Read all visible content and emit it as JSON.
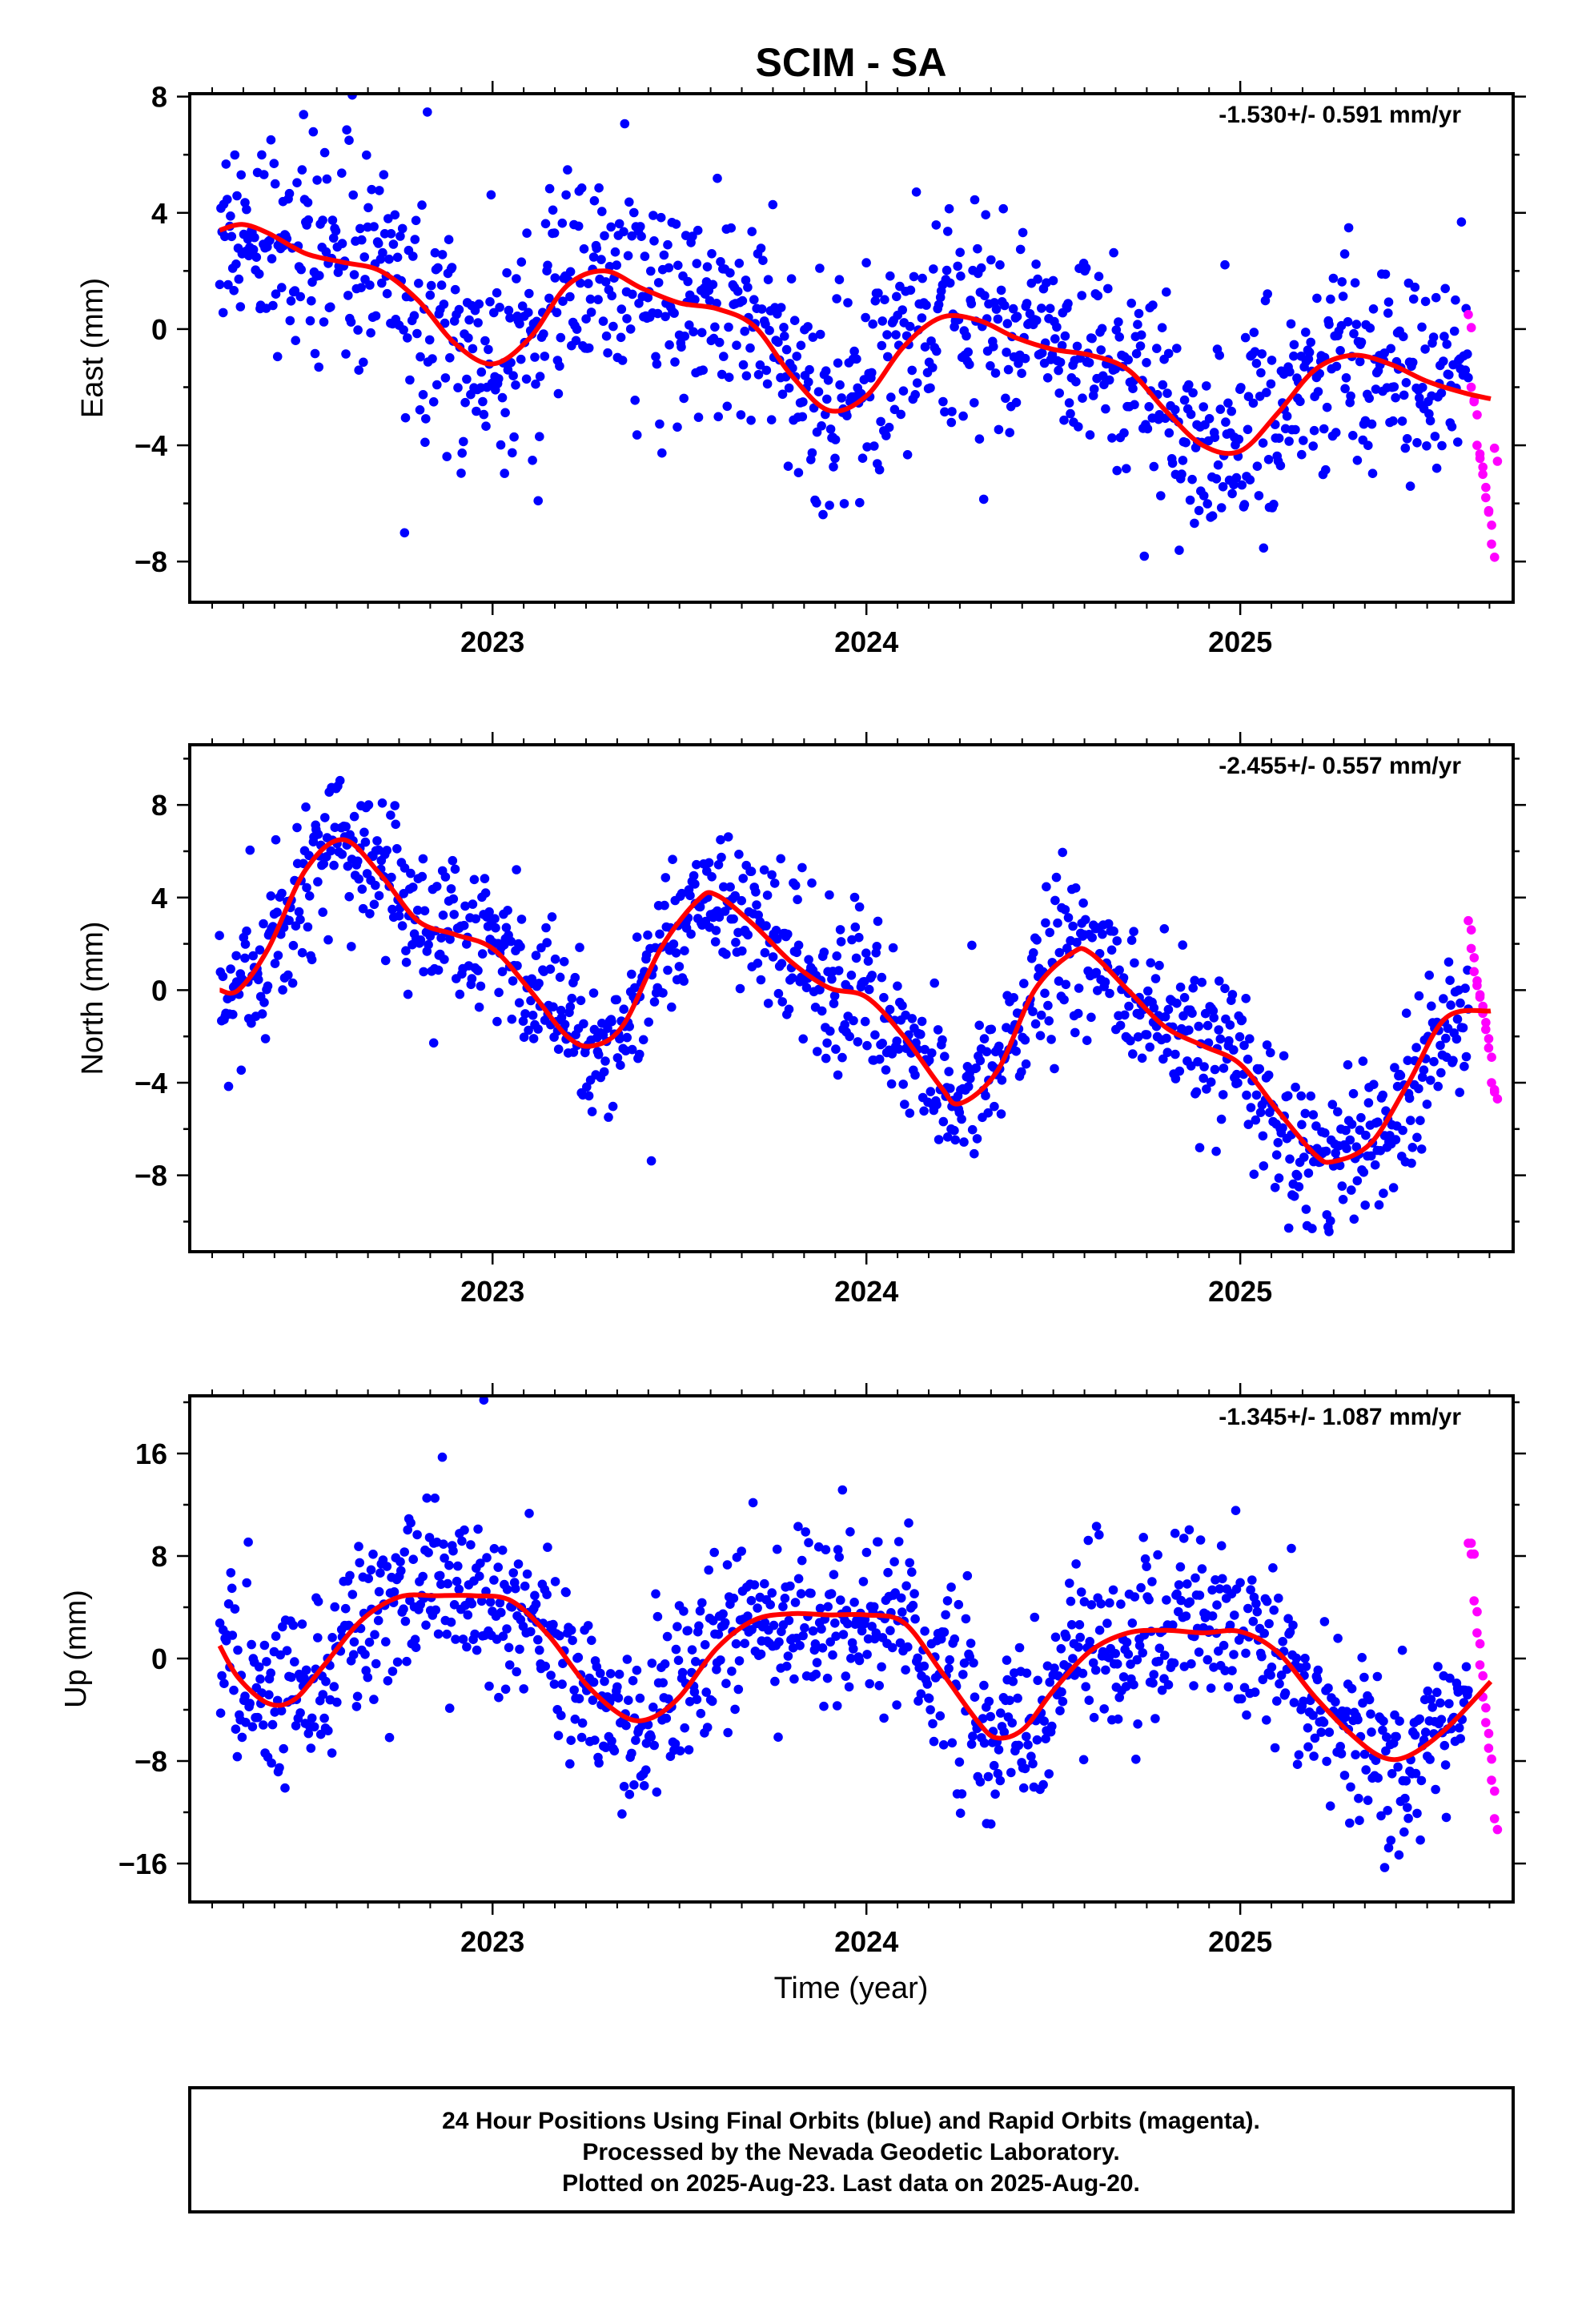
{
  "title": "SCIM - SA",
  "xlabel": "Time (year)",
  "footer": {
    "line1": "24 Hour Positions Using Final Orbits (blue) and Rapid Orbits (magenta).",
    "line2": "Processed by the Nevada Geodetic Laboratory.",
    "line3": "Plotted on 2025-Aug-23. Last data on 2025-Aug-20."
  },
  "colors": {
    "final": "#0000ff",
    "rapid": "#ff00ff",
    "model": "#ff0000"
  },
  "chart_data": [
    {
      "type": "scatter",
      "ylabel": "East (mm)",
      "rate": "-1.530+/- 0.591 mm/yr",
      "xlim": [
        2022.19,
        2025.73
      ],
      "ylim": [
        -9.4,
        8.1
      ],
      "xticks": [
        2023,
        2024,
        2025
      ],
      "xtick_labels": [
        "2023",
        "2024",
        "2025"
      ],
      "yticks": [
        -8,
        -4,
        0,
        4,
        8
      ],
      "ytick_labels": [
        "−8",
        "−4",
        "0",
        "4",
        "8"
      ],
      "model_curve": {
        "x": [
          2022.27,
          2022.33,
          2022.4,
          2022.5,
          2022.6,
          2022.7,
          2022.8,
          2022.9,
          2023.0,
          2023.1,
          2023.2,
          2023.3,
          2023.4,
          2023.5,
          2023.6,
          2023.7,
          2023.8,
          2023.9,
          2024.0,
          2024.1,
          2024.2,
          2024.3,
          2024.4,
          2024.5,
          2024.6,
          2024.7,
          2024.8,
          2024.9,
          2025.0,
          2025.1,
          2025.2,
          2025.3,
          2025.4,
          2025.5,
          2025.6,
          2025.67
        ],
        "y": [
          3.4,
          3.6,
          3.3,
          2.6,
          2.3,
          2.0,
          1.0,
          -0.5,
          -1.2,
          -0.3,
          1.5,
          2.0,
          1.4,
          0.9,
          0.7,
          0.1,
          -1.6,
          -2.8,
          -2.3,
          -0.6,
          0.4,
          0.3,
          -0.3,
          -0.7,
          -0.9,
          -1.4,
          -2.8,
          -4.0,
          -4.2,
          -2.9,
          -1.4,
          -0.9,
          -1.2,
          -1.8,
          -2.2,
          -2.4
        ]
      },
      "rapid_segment": {
        "x0": 2025.61,
        "x1": 2025.68,
        "values": [
          0.5,
          -2.0,
          -2.5,
          -4.0,
          -4.3,
          -5.0,
          -5.8,
          -6.3,
          -7.4,
          -4.1
        ]
      },
      "noise": 1.8
    },
    {
      "type": "scatter",
      "ylabel": "North (mm)",
      "rate": "-2.455+/- 0.557 mm/yr",
      "xlim": [
        2022.19,
        2025.73
      ],
      "ylim": [
        -11.3,
        10.6
      ],
      "xticks": [
        2023,
        2024,
        2025
      ],
      "xtick_labels": [
        "2023",
        "2024",
        "2025"
      ],
      "yticks": [
        -8,
        -4,
        0,
        4,
        8
      ],
      "ytick_labels": [
        "−8",
        "−4",
        "0",
        "4",
        "8"
      ],
      "model_curve": {
        "x": [
          2022.27,
          2022.32,
          2022.4,
          2022.5,
          2022.6,
          2022.7,
          2022.8,
          2022.9,
          2023.0,
          2023.1,
          2023.2,
          2023.27,
          2023.35,
          2023.45,
          2023.55,
          2023.6,
          2023.7,
          2023.8,
          2023.9,
          2024.0,
          2024.1,
          2024.2,
          2024.25,
          2024.35,
          2024.45,
          2024.55,
          2024.6,
          2024.7,
          2024.8,
          2024.9,
          2025.0,
          2025.1,
          2025.2,
          2025.25,
          2025.35,
          2025.45,
          2025.55,
          2025.67
        ],
        "y": [
          0.0,
          0.0,
          1.8,
          5.2,
          6.5,
          5.0,
          3.0,
          2.4,
          1.8,
          0.0,
          -2.0,
          -2.4,
          -1.5,
          1.8,
          3.9,
          4.1,
          2.8,
          1.2,
          0.1,
          -0.3,
          -2.0,
          -4.2,
          -4.9,
          -3.5,
          0.0,
          1.6,
          1.6,
          0.0,
          -1.6,
          -2.4,
          -3.2,
          -5.2,
          -7.1,
          -7.4,
          -6.6,
          -4.0,
          -1.2,
          -0.9
        ]
      },
      "rapid_segment": {
        "x0": 2025.61,
        "x1": 2025.68,
        "values": [
          3.0,
          1.8,
          0.8,
          0.2,
          -0.3,
          -1.0,
          -1.7,
          -2.5,
          -4.0,
          -4.3
        ]
      },
      "noise": 1.6
    },
    {
      "type": "scatter",
      "ylabel": "Up (mm)",
      "rate": "-1.345+/- 1.087 mm/yr",
      "xlim": [
        2022.19,
        2025.73
      ],
      "ylim": [
        -19.0,
        20.5
      ],
      "xticks": [
        2023,
        2024,
        2025
      ],
      "xtick_labels": [
        "2023",
        "2024",
        "2025"
      ],
      "yticks": [
        -16,
        -8,
        0,
        8,
        16
      ],
      "ytick_labels": [
        "−16",
        "−8",
        "0",
        "8",
        "16"
      ],
      "model_curve": {
        "x": [
          2022.27,
          2022.32,
          2022.4,
          2022.47,
          2022.55,
          2022.65,
          2022.75,
          2022.85,
          2022.95,
          2023.05,
          2023.15,
          2023.25,
          2023.35,
          2023.42,
          2023.5,
          2023.6,
          2023.7,
          2023.8,
          2023.9,
          2024.0,
          2024.1,
          2024.2,
          2024.3,
          2024.35,
          2024.42,
          2024.5,
          2024.6,
          2024.7,
          2024.8,
          2024.9,
          2025.0,
          2025.1,
          2025.2,
          2025.3,
          2025.38,
          2025.45,
          2025.55,
          2025.67
        ],
        "y": [
          1.0,
          -1.5,
          -3.5,
          -3.2,
          -0.5,
          3.0,
          4.8,
          4.9,
          4.9,
          4.5,
          1.8,
          -2.0,
          -4.5,
          -4.7,
          -3.0,
          0.8,
          3.0,
          3.5,
          3.4,
          3.4,
          2.8,
          -1.0,
          -5.0,
          -6.2,
          -5.5,
          -2.5,
          0.6,
          2.0,
          2.2,
          2.0,
          2.1,
          0.5,
          -3.0,
          -6.0,
          -7.7,
          -7.6,
          -5.5,
          -1.8
        ]
      },
      "rapid_segment": {
        "x0": 2025.61,
        "x1": 2025.68,
        "values": [
          9.0,
          9.0,
          4.5,
          2.0,
          -0.5,
          -3.0,
          -5.0,
          -7.0,
          -9.5,
          -12.5
        ]
      },
      "noise": 3.4
    }
  ]
}
